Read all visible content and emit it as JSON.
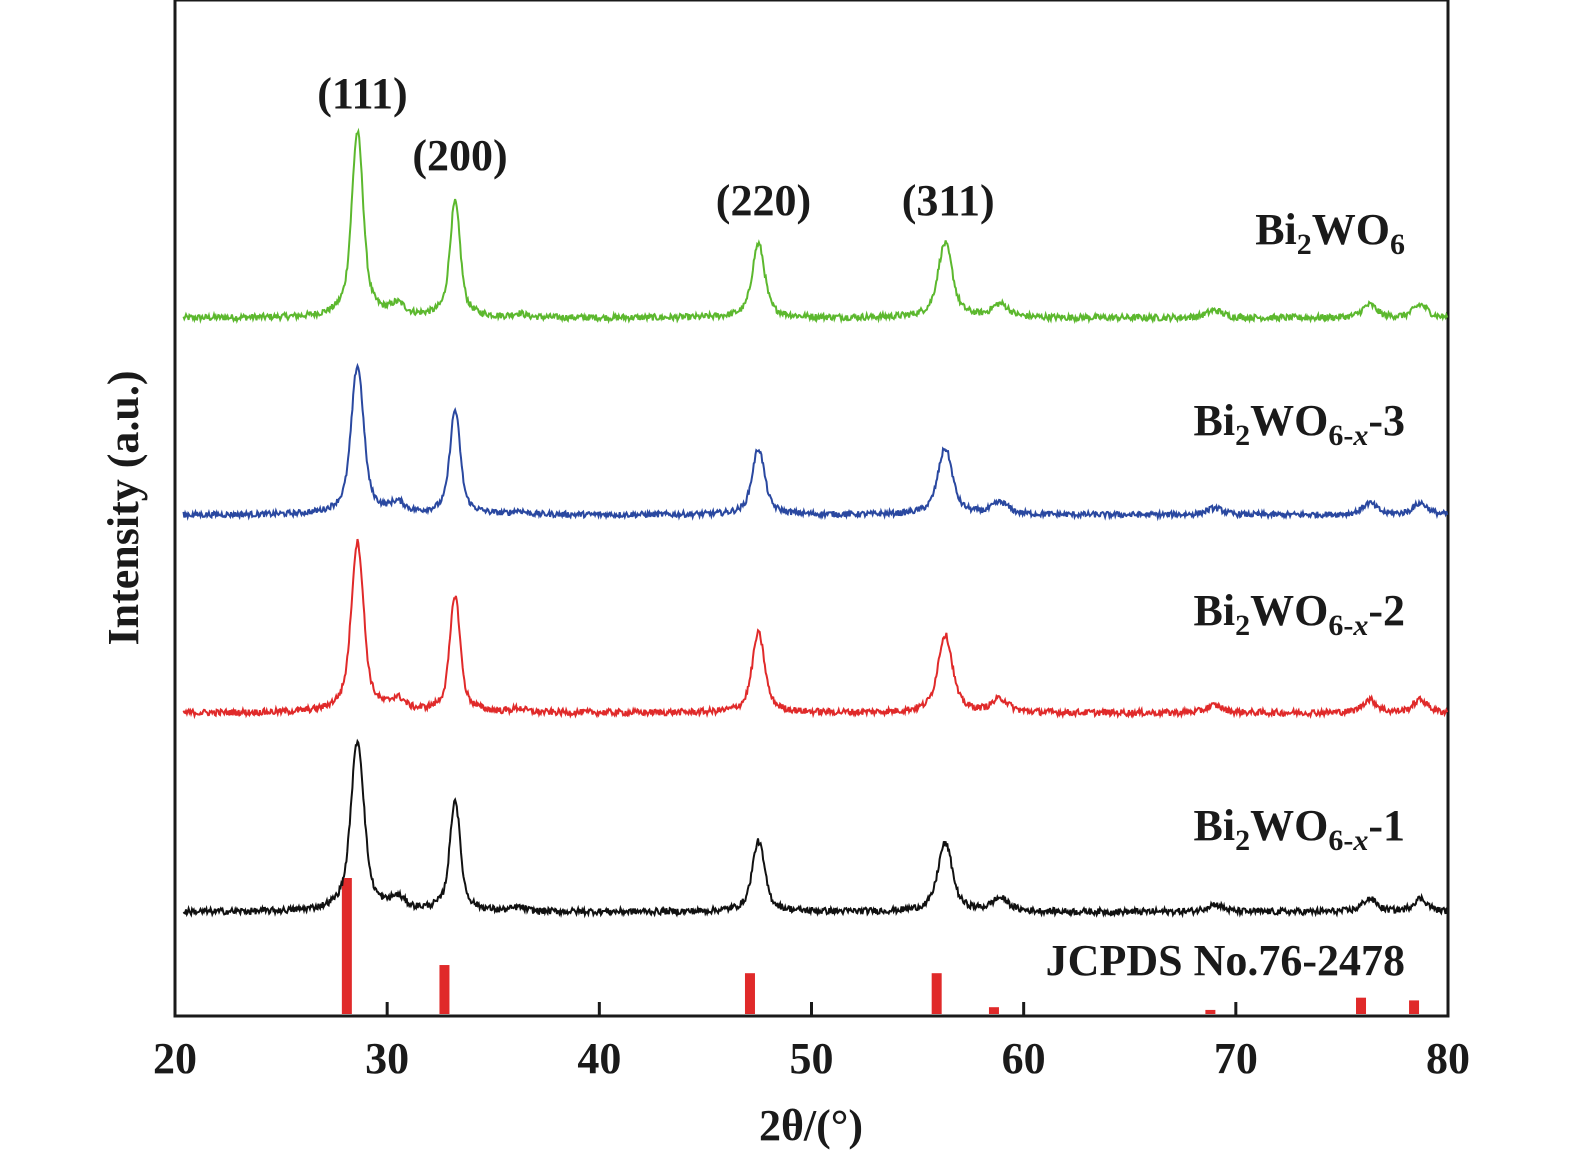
{
  "chart_data": {
    "type": "line",
    "xlabel": "2θ/(°)",
    "ylabel": "Intensity (a.u.)",
    "xlim": [
      20,
      80
    ],
    "x_ticks": [
      20,
      30,
      40,
      50,
      60,
      70,
      80
    ],
    "y_ticks_shown": false,
    "grid": false,
    "legend": "labels placed at right, above each curve",
    "peak_annotations": [
      {
        "label": "(111)",
        "x": 28.6
      },
      {
        "label": "(200)",
        "x": 33.2
      },
      {
        "label": "(220)",
        "x": 47.5
      },
      {
        "label": "(311)",
        "x": 56.3
      }
    ],
    "series": [
      {
        "name": "Bi2WO6",
        "label_main": "Bi",
        "label_parts": [
          {
            "t": "Bi"
          },
          {
            "t": "2",
            "sub": true
          },
          {
            "t": "WO"
          },
          {
            "t": "6",
            "sub": true
          }
        ],
        "color": "#5cb82e",
        "peaks": [
          {
            "x": 28.6,
            "height": 1.0,
            "width": 0.28
          },
          {
            "x": 33.2,
            "height": 0.62,
            "width": 0.25
          },
          {
            "x": 47.5,
            "height": 0.4,
            "width": 0.3
          },
          {
            "x": 56.3,
            "height": 0.4,
            "width": 0.35
          },
          {
            "x": 58.9,
            "height": 0.07,
            "width": 0.4
          },
          {
            "x": 69.0,
            "height": 0.04,
            "width": 0.4
          },
          {
            "x": 76.3,
            "height": 0.07,
            "width": 0.35
          },
          {
            "x": 78.7,
            "height": 0.07,
            "width": 0.35
          },
          {
            "x": 30.5,
            "height": 0.06,
            "width": 0.35
          },
          {
            "x": 36.2,
            "height": 0.02,
            "width": 0.3
          }
        ]
      },
      {
        "name": "Bi2WO6-x-3",
        "label_parts": [
          {
            "t": "Bi"
          },
          {
            "t": "2",
            "sub": true
          },
          {
            "t": "WO"
          },
          {
            "t": "6-",
            "sub": true
          },
          {
            "t": "x",
            "sub": true,
            "italic": true
          },
          {
            "t": "-3"
          }
        ],
        "color": "#2a48a0",
        "peaks": [
          {
            "x": 28.6,
            "height": 0.9,
            "width": 0.3
          },
          {
            "x": 33.2,
            "height": 0.63,
            "width": 0.25
          },
          {
            "x": 47.5,
            "height": 0.4,
            "width": 0.3
          },
          {
            "x": 56.3,
            "height": 0.4,
            "width": 0.35
          },
          {
            "x": 58.9,
            "height": 0.07,
            "width": 0.4
          },
          {
            "x": 69.0,
            "height": 0.04,
            "width": 0.4
          },
          {
            "x": 76.3,
            "height": 0.07,
            "width": 0.35
          },
          {
            "x": 78.7,
            "height": 0.07,
            "width": 0.35
          },
          {
            "x": 30.5,
            "height": 0.06,
            "width": 0.35
          },
          {
            "x": 36.2,
            "height": 0.02,
            "width": 0.3
          }
        ]
      },
      {
        "name": "Bi2WO6-x-2",
        "label_parts": [
          {
            "t": "Bi"
          },
          {
            "t": "2",
            "sub": true
          },
          {
            "t": "WO"
          },
          {
            "t": "6-",
            "sub": true
          },
          {
            "t": "x",
            "sub": true,
            "italic": true
          },
          {
            "t": "-2"
          }
        ],
        "color": "#e02a2a",
        "peaks": [
          {
            "x": 28.6,
            "height": 0.92,
            "width": 0.3
          },
          {
            "x": 33.2,
            "height": 0.63,
            "width": 0.25
          },
          {
            "x": 47.5,
            "height": 0.43,
            "width": 0.3
          },
          {
            "x": 56.3,
            "height": 0.42,
            "width": 0.35
          },
          {
            "x": 58.9,
            "height": 0.07,
            "width": 0.4
          },
          {
            "x": 69.0,
            "height": 0.04,
            "width": 0.4
          },
          {
            "x": 76.3,
            "height": 0.07,
            "width": 0.35
          },
          {
            "x": 78.7,
            "height": 0.07,
            "width": 0.35
          },
          {
            "x": 30.5,
            "height": 0.06,
            "width": 0.35
          },
          {
            "x": 36.2,
            "height": 0.02,
            "width": 0.3
          }
        ]
      },
      {
        "name": "Bi2WO6-x-1",
        "label_parts": [
          {
            "t": "Bi"
          },
          {
            "t": "2",
            "sub": true
          },
          {
            "t": "WO"
          },
          {
            "t": "6-",
            "sub": true
          },
          {
            "t": "x",
            "sub": true,
            "italic": true
          },
          {
            "t": "-1"
          }
        ],
        "color": "#111111",
        "peaks": [
          {
            "x": 28.6,
            "height": 0.92,
            "width": 0.32
          },
          {
            "x": 33.2,
            "height": 0.6,
            "width": 0.25
          },
          {
            "x": 47.5,
            "height": 0.38,
            "width": 0.3
          },
          {
            "x": 56.3,
            "height": 0.37,
            "width": 0.35
          },
          {
            "x": 58.9,
            "height": 0.07,
            "width": 0.4
          },
          {
            "x": 69.0,
            "height": 0.04,
            "width": 0.4
          },
          {
            "x": 76.3,
            "height": 0.07,
            "width": 0.35
          },
          {
            "x": 78.7,
            "height": 0.07,
            "width": 0.35
          },
          {
            "x": 30.5,
            "height": 0.06,
            "width": 0.35
          },
          {
            "x": 36.2,
            "height": 0.02,
            "width": 0.3
          }
        ]
      }
    ],
    "reference": {
      "name": "JCPDS No.76-2478",
      "color": "#e02a2a",
      "bars": [
        {
          "x": 28.1,
          "value": 1.0
        },
        {
          "x": 32.7,
          "value": 0.36
        },
        {
          "x": 47.1,
          "value": 0.3
        },
        {
          "x": 55.9,
          "value": 0.3
        },
        {
          "x": 58.6,
          "value": 0.05
        },
        {
          "x": 68.8,
          "value": 0.03
        },
        {
          "x": 75.9,
          "value": 0.12
        },
        {
          "x": 78.4,
          "value": 0.1
        }
      ]
    }
  }
}
